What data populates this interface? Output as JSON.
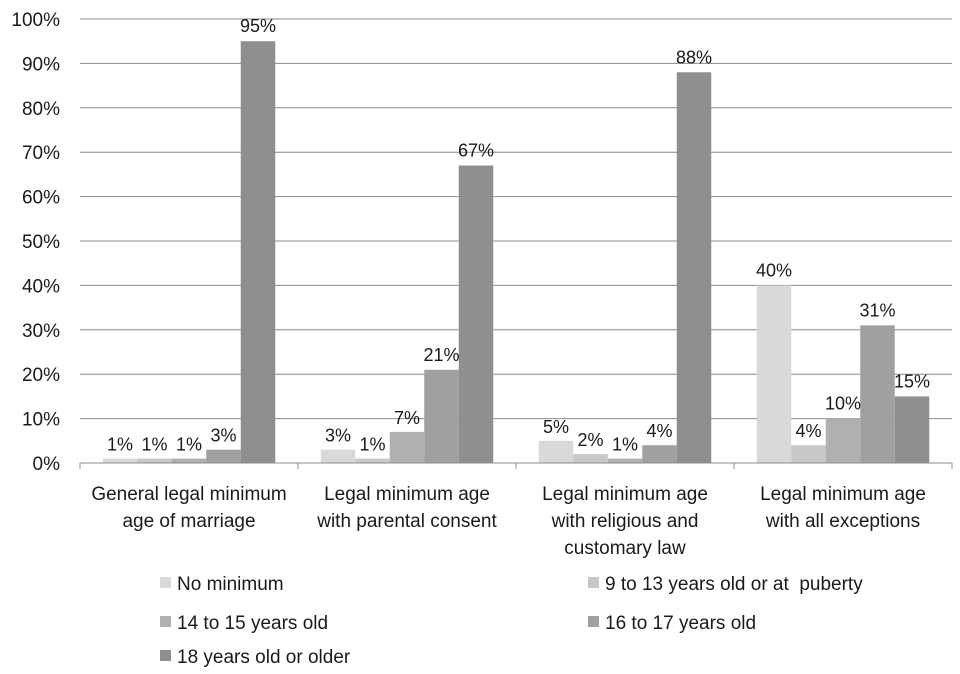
{
  "chart_data": {
    "type": "bar",
    "categories": [
      "General legal minimum age of marriage",
      "Legal minimum age with parental consent",
      "Legal minimum age with religious and customary law",
      "Legal minimum age with all exceptions"
    ],
    "category_lines": [
      [
        "General legal minimum",
        "age of marriage"
      ],
      [
        "Legal minimum age",
        "with parental consent"
      ],
      [
        "Legal minimum age",
        "with religious and",
        "customary law"
      ],
      [
        "Legal minimum age",
        "with all exceptions"
      ]
    ],
    "series": [
      {
        "name": "No minimum",
        "values": [
          1,
          3,
          5,
          40
        ],
        "color": "#d9d9d9"
      },
      {
        "name": "9 to 13 years old or at  puberty",
        "values": [
          1,
          1,
          2,
          4
        ],
        "color": "#c8c8c8"
      },
      {
        "name": "14 to 15 years old",
        "values": [
          1,
          7,
          1,
          10
        ],
        "color": "#b0b0b0"
      },
      {
        "name": "16 to 17 years old",
        "values": [
          3,
          21,
          4,
          31
        ],
        "color": "#a0a0a0"
      },
      {
        "name": "18 years old or older",
        "values": [
          95,
          67,
          88,
          15
        ],
        "color": "#8f8f8f"
      }
    ],
    "data_labels": [
      [
        "1%",
        "3%",
        "5%",
        "40%"
      ],
      [
        "1%",
        "1%",
        "2%",
        "4%"
      ],
      [
        "1%",
        "7%",
        "1%",
        "10%"
      ],
      [
        "3%",
        "21%",
        "4%",
        "31%"
      ],
      [
        "95%",
        "67%",
        "88%",
        "15%"
      ]
    ],
    "y_ticks": [
      "0%",
      "10%",
      "20%",
      "30%",
      "40%",
      "50%",
      "60%",
      "70%",
      "80%",
      "90%",
      "100%"
    ],
    "ylim": [
      0,
      100
    ],
    "grid": true,
    "legend_position": "bottom",
    "title": "",
    "xlabel": "",
    "ylabel": ""
  }
}
